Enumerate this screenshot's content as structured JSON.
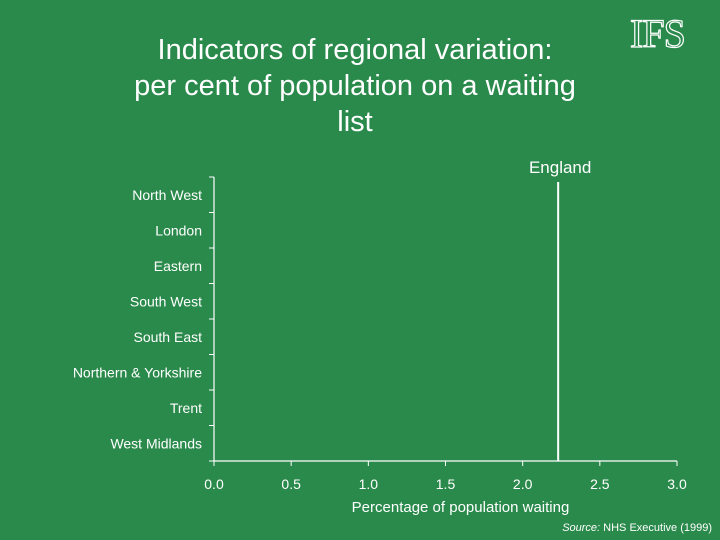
{
  "header": {
    "title_lines": [
      "Indicators of regional variation:",
      "per cent of population on a waiting",
      "list"
    ],
    "logo_text": "IFS"
  },
  "footer": {
    "source_label": "Source:",
    "source_text": " NHS Executive (1999)"
  },
  "chart_data": {
    "type": "bar",
    "orientation": "horizontal",
    "categories": [
      "North West",
      "London",
      "Eastern",
      "South West",
      "South East",
      "Northern & Yorkshire",
      "Trent",
      "West Midlands"
    ],
    "values": [
      null,
      null,
      null,
      null,
      null,
      null,
      null,
      null
    ],
    "xlabel": "Percentage of population waiting",
    "xlim": [
      0,
      3
    ],
    "xticks": [
      "0.0",
      "0.5",
      "1.0",
      "1.5",
      "2.0",
      "2.5",
      "3.0"
    ],
    "grid": false,
    "reference_line": {
      "label": "England",
      "value": 2.23
    }
  },
  "colors": {
    "background": "#2a8a4b",
    "foreground": "#ffffff"
  }
}
